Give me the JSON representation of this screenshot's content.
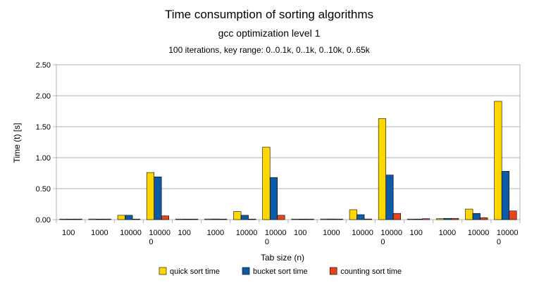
{
  "chart_data": {
    "type": "bar",
    "title": "Time consumption of sorting algorithms",
    "subtitle": "gcc optimization level 1",
    "subtitle2": "100 iterations, key range: 0..0.1k, 0..1k, 0..10k, 0..65k",
    "xlabel": "Tab size (n)",
    "ylabel": "Time (t) [s]",
    "ylim": [
      0,
      2.5
    ],
    "yticks": [
      "0.00",
      "0.50",
      "1.00",
      "1.50",
      "2.00",
      "2.50"
    ],
    "grid": true,
    "legend_position": "bottom",
    "categories": [
      [
        "100"
      ],
      [
        "1000"
      ],
      [
        "10000"
      ],
      [
        "10000",
        "0"
      ],
      [
        "100"
      ],
      [
        "1000"
      ],
      [
        "10000"
      ],
      [
        "10000",
        "0"
      ],
      [
        "100"
      ],
      [
        "1000"
      ],
      [
        "10000"
      ],
      [
        "10000",
        "0"
      ],
      [
        "100"
      ],
      [
        "1000"
      ],
      [
        "10000"
      ],
      [
        "10000",
        "0"
      ]
    ],
    "series": [
      {
        "name": "quick sort time",
        "color": "#FFD700",
        "values": [
          0.005,
          0.01,
          0.07,
          0.76,
          0.005,
          0.01,
          0.13,
          1.17,
          0.005,
          0.01,
          0.16,
          1.63,
          0.005,
          0.015,
          0.17,
          1.91
        ]
      },
      {
        "name": "bucket sort time",
        "color": "#0F5AA6",
        "values": [
          0.003,
          0.005,
          0.07,
          0.69,
          0.003,
          0.01,
          0.07,
          0.68,
          0.005,
          0.01,
          0.08,
          0.72,
          0.005,
          0.02,
          0.1,
          0.78
        ]
      },
      {
        "name": "counting sort time",
        "color": "#E8441C",
        "values": [
          0.002,
          0.003,
          0.005,
          0.06,
          0.002,
          0.003,
          0.005,
          0.07,
          0.003,
          0.005,
          0.01,
          0.1,
          0.015,
          0.02,
          0.03,
          0.14
        ]
      }
    ]
  }
}
